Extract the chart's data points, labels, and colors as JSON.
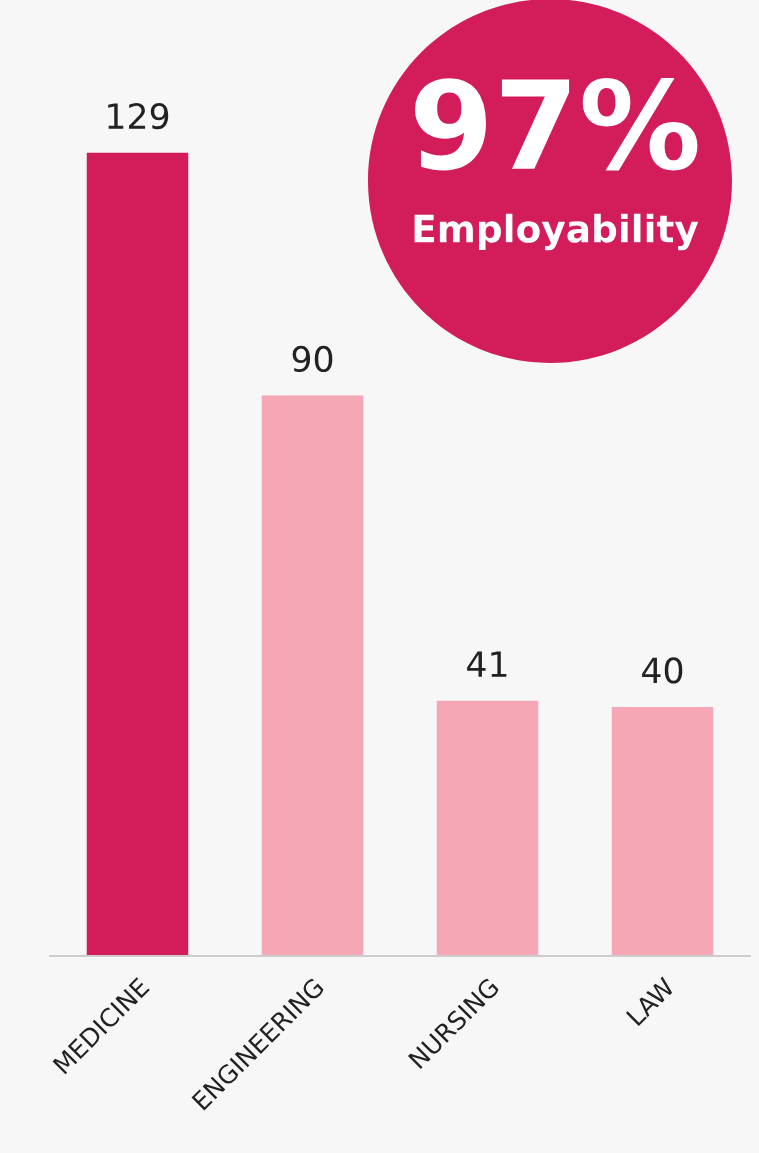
{
  "chart_data": {
    "type": "bar",
    "categories": [
      "MEDICINE",
      "ENGINEERING",
      "NURSING",
      "LAW"
    ],
    "values": [
      129,
      90,
      41,
      40
    ],
    "colors": [
      "#d31c5a",
      "#f5a7b5",
      "#f5a7b5",
      "#f5a7b5"
    ],
    "data_labels": true,
    "annotations": [
      "97%",
      "Employability"
    ],
    "grid": false,
    "legend": false,
    "tick_labels": "x"
  }
}
